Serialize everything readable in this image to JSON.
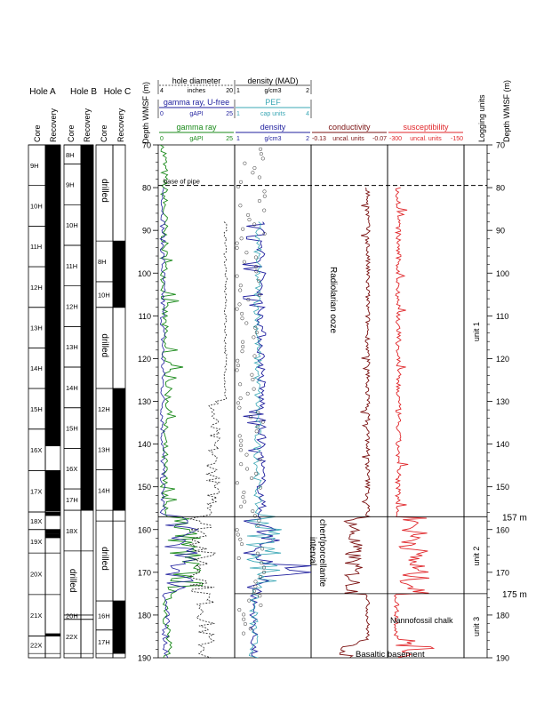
{
  "holes": {
    "titles": [
      "Hole A",
      "Hole B",
      "Hole C"
    ],
    "column_labels": {
      "core": "Core",
      "recovery": "Recovery"
    },
    "A": {
      "cores": [
        {
          "label": "9H",
          "top": 70,
          "bottom": 79.5,
          "rec": [
            {
              "top": 70,
              "bottom": 79.5
            }
          ]
        },
        {
          "label": "10H",
          "top": 79.5,
          "bottom": 89,
          "rec": [
            {
              "top": 79.5,
              "bottom": 89
            }
          ]
        },
        {
          "label": "11H",
          "top": 89,
          "bottom": 98.5,
          "rec": [
            {
              "top": 89,
              "bottom": 98.5
            }
          ]
        },
        {
          "label": "12H",
          "top": 98.5,
          "bottom": 108,
          "rec": [
            {
              "top": 98.5,
              "bottom": 108
            }
          ]
        },
        {
          "label": "13H",
          "top": 108,
          "bottom": 117.5,
          "rec": [
            {
              "top": 108,
              "bottom": 117.5
            }
          ]
        },
        {
          "label": "14H",
          "top": 117.5,
          "bottom": 127,
          "rec": [
            {
              "top": 117.5,
              "bottom": 127
            }
          ]
        },
        {
          "label": "15H",
          "top": 127,
          "bottom": 136.5,
          "rec": [
            {
              "top": 127,
              "bottom": 136.5
            }
          ]
        },
        {
          "label": "16X",
          "top": 136.5,
          "bottom": 146.2,
          "rec": [
            {
              "top": 136.5,
              "bottom": 140.5
            }
          ]
        },
        {
          "label": "17X",
          "top": 146.2,
          "bottom": 155.9,
          "rec": [
            {
              "top": 146.2,
              "bottom": 155.7
            }
          ]
        },
        {
          "label": "18X",
          "top": 155.9,
          "bottom": 160,
          "rec": [
            {
              "top": 155.9,
              "bottom": 156.8
            },
            {
              "top": 160,
              "bottom": 161
            }
          ]
        },
        {
          "label": "19X",
          "top": 160,
          "bottom": 165.5,
          "rec": [
            {
              "top": 161,
              "bottom": 162
            }
          ]
        },
        {
          "label": "20X",
          "top": 165.5,
          "bottom": 175.2,
          "rec": []
        },
        {
          "label": "21X",
          "top": 175.2,
          "bottom": 184.9,
          "rec": [
            {
              "top": 184.3,
              "bottom": 184.9
            }
          ]
        },
        {
          "label": "22X",
          "top": 184.9,
          "bottom": 189,
          "rec": []
        }
      ]
    },
    "B": {
      "cores": [
        {
          "label": "8H",
          "top": 70,
          "bottom": 74.5,
          "rec": [
            {
              "top": 70,
              "bottom": 74.5
            }
          ]
        },
        {
          "label": "9H",
          "top": 74.5,
          "bottom": 84,
          "rec": [
            {
              "top": 74.5,
              "bottom": 84
            }
          ]
        },
        {
          "label": "10H",
          "top": 84,
          "bottom": 93.5,
          "rec": [
            {
              "top": 84,
              "bottom": 93.5
            }
          ]
        },
        {
          "label": "11H",
          "top": 93.5,
          "bottom": 103,
          "rec": [
            {
              "top": 93.5,
              "bottom": 103
            }
          ]
        },
        {
          "label": "12H",
          "top": 103,
          "bottom": 112.5,
          "rec": [
            {
              "top": 103,
              "bottom": 112.5
            }
          ]
        },
        {
          "label": "13H",
          "top": 112.5,
          "bottom": 122,
          "rec": [
            {
              "top": 112.5,
              "bottom": 122
            }
          ]
        },
        {
          "label": "14H",
          "top": 122,
          "bottom": 131.5,
          "rec": [
            {
              "top": 122,
              "bottom": 131.5
            }
          ]
        },
        {
          "label": "15H",
          "top": 131.5,
          "bottom": 141,
          "rec": [
            {
              "top": 131.5,
              "bottom": 141
            }
          ]
        },
        {
          "label": "16X",
          "top": 141,
          "bottom": 150.5,
          "rec": [
            {
              "top": 141,
              "bottom": 150.5
            }
          ]
        },
        {
          "label": "17H",
          "top": 150.5,
          "bottom": 155.5,
          "rec": [
            {
              "top": 150.5,
              "bottom": 155.5
            }
          ]
        },
        {
          "label": "18X",
          "top": 155.5,
          "bottom": 165,
          "rec": []
        },
        {
          "label": "20H",
          "top": 180,
          "bottom": 181,
          "rec": []
        },
        {
          "label": "22X",
          "top": 181,
          "bottom": 189,
          "rec": []
        }
      ],
      "drilled": [
        {
          "label": "drilled",
          "top": 165,
          "bottom": 180
        }
      ]
    },
    "C": {
      "cores": [
        {
          "label": "8H",
          "top": 92.5,
          "bottom": 102,
          "rec": [
            {
              "top": 92.5,
              "bottom": 102
            }
          ]
        },
        {
          "label": "10H",
          "top": 102,
          "bottom": 108,
          "rec": [
            {
              "top": 102,
              "bottom": 108
            }
          ]
        },
        {
          "label": "12H",
          "top": 127,
          "bottom": 136.5,
          "rec": [
            {
              "top": 127,
              "bottom": 136.5
            }
          ]
        },
        {
          "label": "13H",
          "top": 136.5,
          "bottom": 146,
          "rec": [
            {
              "top": 136.5,
              "bottom": 146
            }
          ]
        },
        {
          "label": "14H",
          "top": 146,
          "bottom": 155.5,
          "rec": [
            {
              "top": 146,
              "bottom": 155.5
            }
          ]
        },
        {
          "label": "16H",
          "top": 176.7,
          "bottom": 183.5,
          "rec": [
            {
              "top": 176.7,
              "bottom": 183.5
            }
          ]
        },
        {
          "label": "17H",
          "top": 183.5,
          "bottom": 189,
          "rec": [
            {
              "top": 183.5,
              "bottom": 189
            }
          ]
        }
      ],
      "drilled": [
        {
          "label": "drilled",
          "top": 70,
          "bottom": 92.5
        },
        {
          "label": "drilled",
          "top": 108,
          "bottom": 127
        },
        {
          "label": "drilled",
          "top": 158,
          "bottom": 176.7
        }
      ]
    }
  },
  "header": {
    "depth_axis_label": "Depth WMSF (m)",
    "right_depth_axis_label": "Depth WMSF (m)",
    "logging_units_label": "Logging units"
  },
  "tracks": {
    "t1": {
      "curves": [
        {
          "name": "hole diameter",
          "unit": "inches",
          "min": "4",
          "max": "20",
          "color": "#222222",
          "dashed": true
        },
        {
          "name": "gamma ray, U-free",
          "unit": "gAPI",
          "min": "0",
          "max": "25",
          "color": "#1f1f9e"
        },
        {
          "name": "gamma ray",
          "unit": "gAPI",
          "min": "0",
          "max": "25",
          "color": "#1a8a1a"
        }
      ]
    },
    "t2": {
      "curves": [
        {
          "name": "density (MAD)",
          "unit": "g/cm3",
          "min": "1",
          "max": "2",
          "color": "#222222",
          "dashed": false
        },
        {
          "name": "PEF",
          "unit": "cap units",
          "min": "1",
          "max": "4",
          "color": "#3aa7b5"
        },
        {
          "name": "density",
          "unit": "g/cm3",
          "min": "1",
          "max": "2",
          "color": "#1f1f9e"
        }
      ]
    },
    "t3": {
      "name": "conductivity",
      "unit": "uncal. units",
      "min": "-0.13",
      "max": "-0.07",
      "color": "#7a1010"
    },
    "t4": {
      "name": "susceptibility",
      "unit": "uncal. units",
      "min": "-300",
      "max": "-150",
      "color": "#e0262a"
    }
  },
  "depth_axis": {
    "min": 70,
    "max": 190,
    "ticks": [
      "70",
      "80",
      "90",
      "100",
      "110",
      "120",
      "130",
      "140",
      "150",
      "160",
      "170",
      "180",
      "190"
    ]
  },
  "annotations": {
    "base_of_pipe": {
      "text": "base of pipe",
      "depth": 79.5
    },
    "boundary_1": {
      "text": "157 m",
      "depth": 157
    },
    "boundary_2": {
      "text": "175 m",
      "depth": 175
    },
    "radiolarian": "Radiolarian ooze",
    "chert": "chert/porcellanite",
    "interval": "interval",
    "nannofossil": "Nannofossil chalk",
    "basaltic": "Basaltic basement"
  },
  "units": [
    {
      "label": "unit 1",
      "top": 70,
      "bottom": 157
    },
    {
      "label": "unit 2",
      "top": 157,
      "bottom": 175
    },
    {
      "label": "unit 3",
      "top": 175,
      "bottom": 190
    }
  ],
  "colors": {
    "conductivity": "#7a1010",
    "susceptibility": "#e0262a",
    "gamma": "#1a8a1a",
    "gamma_ufree": "#1f1f9e",
    "density": "#1f1f9e",
    "pef": "#3aa7b5",
    "diameter": "#222222"
  }
}
